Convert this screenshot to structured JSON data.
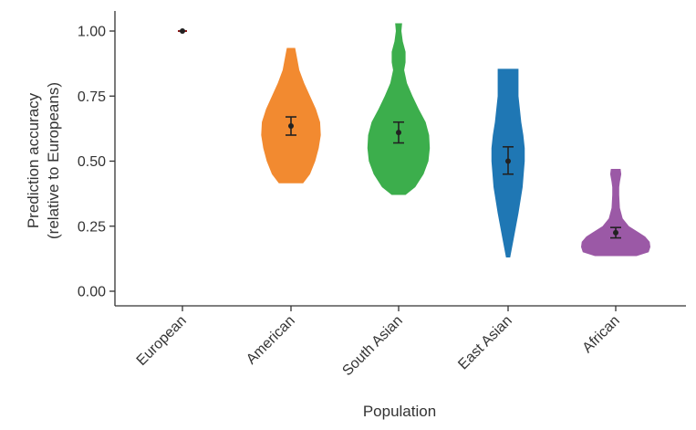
{
  "chart_data": {
    "type": "violin",
    "xlabel": "Population",
    "ylabel": "Prediction accuracy",
    "ylabel_line2": "(relative to Europeans)",
    "ylim": [
      0,
      1.05
    ],
    "yticks": [
      "0.00",
      "0.25",
      "0.50",
      "0.75",
      "1.00"
    ],
    "ytick_values": [
      0,
      0.25,
      0.5,
      0.75,
      1.0
    ],
    "grid": false,
    "categories": [
      "European",
      "American",
      "South Asian",
      "East Asian",
      "African"
    ],
    "series": [
      {
        "category": "European",
        "color": "#8b1a1a",
        "mean": 1.0,
        "ci": [
          1.0,
          1.0
        ],
        "profile": [
          [
            1.0,
            0.0
          ]
        ]
      },
      {
        "category": "American",
        "color": "#f28a30",
        "mean": 0.635,
        "ci": [
          0.6,
          0.67
        ],
        "profile": [
          [
            0.415,
            0.35
          ],
          [
            0.45,
            0.55
          ],
          [
            0.5,
            0.7
          ],
          [
            0.55,
            0.8
          ],
          [
            0.6,
            0.86
          ],
          [
            0.65,
            0.84
          ],
          [
            0.7,
            0.72
          ],
          [
            0.75,
            0.55
          ],
          [
            0.8,
            0.38
          ],
          [
            0.85,
            0.24
          ],
          [
            0.9,
            0.17
          ],
          [
            0.935,
            0.12
          ]
        ]
      },
      {
        "category": "South Asian",
        "color": "#3cae4c",
        "mean": 0.61,
        "ci": [
          0.57,
          0.65
        ],
        "profile": [
          [
            0.37,
            0.2
          ],
          [
            0.4,
            0.48
          ],
          [
            0.45,
            0.72
          ],
          [
            0.5,
            0.86
          ],
          [
            0.55,
            0.9
          ],
          [
            0.6,
            0.88
          ],
          [
            0.65,
            0.78
          ],
          [
            0.7,
            0.58
          ],
          [
            0.75,
            0.4
          ],
          [
            0.8,
            0.24
          ],
          [
            0.85,
            0.16
          ],
          [
            0.88,
            0.2
          ],
          [
            0.92,
            0.2
          ],
          [
            0.96,
            0.12
          ],
          [
            1.0,
            0.08
          ],
          [
            1.03,
            0.1
          ]
        ]
      },
      {
        "category": "East Asian",
        "color": "#1f77b4",
        "mean": 0.5,
        "ci": [
          0.45,
          0.555
        ],
        "profile": [
          [
            0.13,
            0.06
          ],
          [
            0.2,
            0.16
          ],
          [
            0.3,
            0.3
          ],
          [
            0.4,
            0.42
          ],
          [
            0.5,
            0.48
          ],
          [
            0.55,
            0.48
          ],
          [
            0.6,
            0.44
          ],
          [
            0.65,
            0.38
          ],
          [
            0.7,
            0.34
          ],
          [
            0.75,
            0.3
          ],
          [
            0.8,
            0.3
          ],
          [
            0.855,
            0.3
          ]
        ]
      },
      {
        "category": "African",
        "color": "#9b59a6",
        "mean": 0.225,
        "ci": [
          0.205,
          0.245
        ],
        "profile": [
          [
            0.135,
            0.6
          ],
          [
            0.15,
            0.95
          ],
          [
            0.17,
            1.0
          ],
          [
            0.19,
            0.98
          ],
          [
            0.21,
            0.85
          ],
          [
            0.23,
            0.62
          ],
          [
            0.25,
            0.38
          ],
          [
            0.28,
            0.2
          ],
          [
            0.32,
            0.12
          ],
          [
            0.37,
            0.1
          ],
          [
            0.4,
            0.1
          ],
          [
            0.42,
            0.12
          ],
          [
            0.45,
            0.16
          ],
          [
            0.47,
            0.14
          ]
        ]
      }
    ]
  }
}
